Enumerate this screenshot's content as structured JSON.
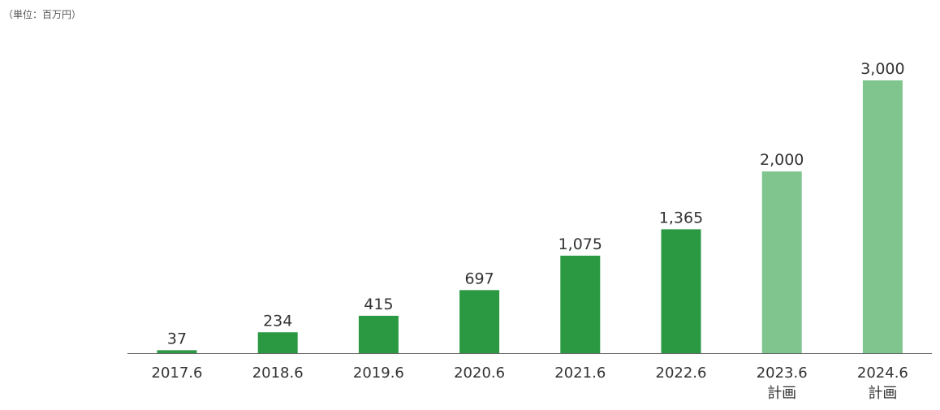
{
  "unit_label": "（単位：百万円）",
  "chart_data": {
    "type": "bar",
    "title": "",
    "xlabel": "",
    "ylabel": "",
    "categories": [
      "2017.6",
      "2018.6",
      "2019.6",
      "2020.6",
      "2021.6",
      "2022.6",
      "2023.6",
      "2024.6"
    ],
    "category_sublabels": [
      "",
      "",
      "",
      "",
      "",
      "",
      "計画",
      "計画"
    ],
    "values": [
      37,
      234,
      415,
      697,
      1075,
      1365,
      2000,
      3000
    ],
    "data_labels": [
      "37",
      "234",
      "415",
      "697",
      "1,075",
      "1,365",
      "2,000",
      "3,000"
    ],
    "planned": [
      false,
      false,
      false,
      false,
      false,
      false,
      true,
      true
    ],
    "ylim": [
      0,
      3000
    ],
    "grid": false,
    "colors": {
      "actual": "#2a9941",
      "planned": "#80c58e",
      "axis": "#666666"
    }
  }
}
